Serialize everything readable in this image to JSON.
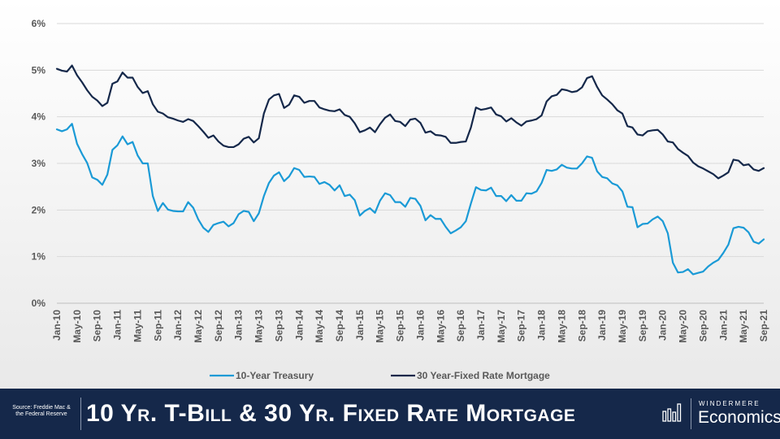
{
  "chart_data": {
    "type": "line",
    "title": "10 Yr. T-Bill & 30 Yr. Fixed Rate Mortgage",
    "xlabel": "",
    "ylabel": "",
    "ylim": [
      0,
      6
    ],
    "yticks": [
      "0%",
      "1%",
      "2%",
      "3%",
      "4%",
      "5%",
      "6%"
    ],
    "grid": true,
    "legend_position": "bottom-center",
    "x_tick_labels": [
      "Jan-10",
      "May-10",
      "Sep-10",
      "Jan-11",
      "May-11",
      "Sep-11",
      "Jan-12",
      "May-12",
      "Sep-12",
      "Jan-13",
      "May-13",
      "Sep-13",
      "Jan-14",
      "May-14",
      "Sep-14",
      "Jan-15",
      "May-15",
      "Sep-15",
      "Jan-16",
      "May-16",
      "Sep-16",
      "Jan-17",
      "May-17",
      "Sep-17",
      "Jan-18",
      "May-18",
      "Sep-18",
      "Jan-19",
      "May-19",
      "Sep-19",
      "Jan-20",
      "May-20",
      "Sep-20",
      "Jan-21",
      "May-21",
      "Sep-21"
    ],
    "x_start": "Jan-10",
    "x_end": "Sep-21",
    "series": [
      {
        "name": "10-Year Treasury",
        "color": "#1a9ad6",
        "values": [
          3.73,
          3.69,
          3.73,
          3.85,
          3.42,
          3.2,
          3.01,
          2.7,
          2.65,
          2.54,
          2.76,
          3.29,
          3.39,
          3.58,
          3.41,
          3.46,
          3.17,
          3.0,
          3.0,
          2.3,
          1.98,
          2.15,
          2.01,
          1.98,
          1.97,
          1.97,
          2.17,
          2.05,
          1.8,
          1.62,
          1.53,
          1.68,
          1.72,
          1.75,
          1.65,
          1.72,
          1.91,
          1.98,
          1.96,
          1.76,
          1.93,
          2.3,
          2.58,
          2.74,
          2.81,
          2.62,
          2.72,
          2.9,
          2.86,
          2.71,
          2.72,
          2.71,
          2.56,
          2.6,
          2.54,
          2.42,
          2.53,
          2.3,
          2.33,
          2.21,
          1.88,
          1.98,
          2.04,
          1.94,
          2.2,
          2.36,
          2.32,
          2.17,
          2.17,
          2.07,
          2.26,
          2.24,
          2.09,
          1.78,
          1.89,
          1.81,
          1.81,
          1.64,
          1.5,
          1.56,
          1.63,
          1.76,
          2.14,
          2.49,
          2.43,
          2.42,
          2.48,
          2.3,
          2.3,
          2.19,
          2.32,
          2.2,
          2.2,
          2.36,
          2.35,
          2.4,
          2.58,
          2.86,
          2.84,
          2.87,
          2.97,
          2.91,
          2.89,
          2.89,
          3.0,
          3.15,
          3.12,
          2.83,
          2.71,
          2.68,
          2.57,
          2.53,
          2.4,
          2.07,
          2.06,
          1.63,
          1.7,
          1.71,
          1.8,
          1.86,
          1.76,
          1.5,
          0.87,
          0.66,
          0.67,
          0.73,
          0.62,
          0.65,
          0.68,
          0.79,
          0.87,
          0.93,
          1.08,
          1.26,
          1.61,
          1.64,
          1.62,
          1.52,
          1.32,
          1.28,
          1.37
        ]
      },
      {
        "name": "30 Year-Fixed Rate Mortgage",
        "color": "#15284a",
        "values": [
          5.03,
          4.99,
          4.97,
          5.1,
          4.89,
          4.74,
          4.57,
          4.43,
          4.35,
          4.23,
          4.3,
          4.71,
          4.76,
          4.95,
          4.84,
          4.84,
          4.64,
          4.51,
          4.55,
          4.27,
          4.11,
          4.07,
          3.99,
          3.96,
          3.92,
          3.89,
          3.95,
          3.91,
          3.8,
          3.68,
          3.55,
          3.6,
          3.47,
          3.38,
          3.35,
          3.35,
          3.41,
          3.53,
          3.57,
          3.45,
          3.54,
          4.07,
          4.37,
          4.46,
          4.49,
          4.19,
          4.26,
          4.46,
          4.43,
          4.3,
          4.34,
          4.34,
          4.2,
          4.16,
          4.13,
          4.12,
          4.16,
          4.04,
          4.0,
          3.86,
          3.67,
          3.71,
          3.77,
          3.67,
          3.84,
          3.98,
          4.05,
          3.91,
          3.89,
          3.8,
          3.94,
          3.96,
          3.87,
          3.66,
          3.69,
          3.61,
          3.6,
          3.57,
          3.44,
          3.44,
          3.46,
          3.47,
          3.77,
          4.2,
          4.15,
          4.17,
          4.2,
          4.05,
          4.01,
          3.9,
          3.97,
          3.88,
          3.81,
          3.9,
          3.92,
          3.95,
          4.03,
          4.33,
          4.44,
          4.47,
          4.59,
          4.57,
          4.53,
          4.55,
          4.63,
          4.83,
          4.87,
          4.64,
          4.46,
          4.37,
          4.27,
          4.14,
          4.07,
          3.8,
          3.77,
          3.62,
          3.6,
          3.69,
          3.71,
          3.72,
          3.62,
          3.47,
          3.45,
          3.31,
          3.23,
          3.16,
          3.02,
          2.94,
          2.89,
          2.83,
          2.77,
          2.68,
          2.74,
          2.81,
          3.08,
          3.06,
          2.96,
          2.98,
          2.87,
          2.84,
          2.9
        ]
      }
    ]
  },
  "footer": {
    "source": "Source: Freddie Mac & the Federal Reserve",
    "title": "10 Yr. T-Bill & 30 Yr. Fixed Rate Mortgage",
    "brand_top": "WINDERMERE",
    "brand_bottom": "Economics"
  },
  "colors": {
    "footer_bg": "#15284a",
    "treasury": "#1a9ad6",
    "mortgage": "#15284a"
  }
}
